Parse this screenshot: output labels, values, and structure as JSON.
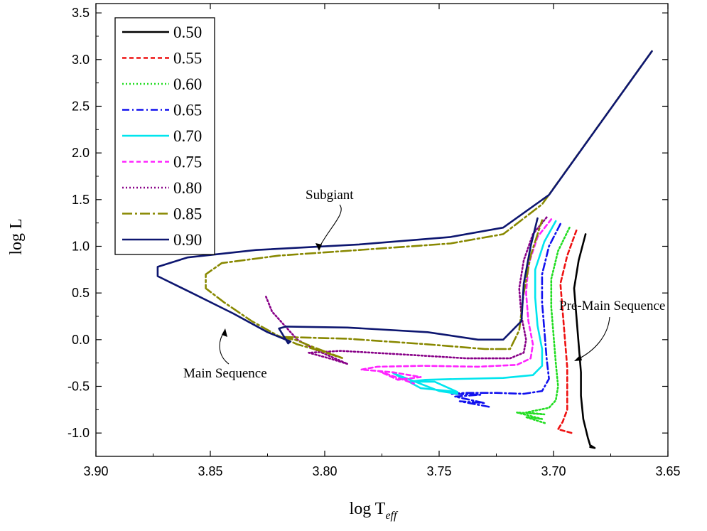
{
  "chart_data": {
    "type": "line",
    "xlabel": "log T",
    "xlabel_sub": "eff",
    "ylabel": "log L",
    "xlim": [
      3.9,
      3.65
    ],
    "ylim": [
      -1.25,
      3.6
    ],
    "x_reversed": true,
    "x_ticks": [
      "3.90",
      "3.85",
      "3.80",
      "3.75",
      "3.70",
      "3.65"
    ],
    "y_ticks": [
      "-1.0",
      "-0.5",
      "0.0",
      "0.5",
      "1.0",
      "1.5",
      "2.0",
      "2.5",
      "3.0",
      "3.5"
    ],
    "legend_position": "top-left",
    "annotations": [
      {
        "text": "Subgiant",
        "target": [
          3.803,
          0.98
        ]
      },
      {
        "text": "Main Sequence",
        "target": [
          3.841,
          0.14
        ]
      },
      {
        "text": "Pre-Main Sequence",
        "target": [
          3.689,
          -0.2
        ]
      }
    ],
    "series": [
      {
        "name": "0.50",
        "color": "#000000",
        "dash": "",
        "points": [
          [
            3.686,
            1.13
          ],
          [
            3.689,
            0.85
          ],
          [
            3.691,
            0.55
          ],
          [
            3.69,
            0.25
          ],
          [
            3.689,
            -0.05
          ],
          [
            3.688,
            -0.35
          ],
          [
            3.688,
            -0.6
          ],
          [
            3.687,
            -0.85
          ],
          [
            3.685,
            -1.05
          ],
          [
            3.684,
            -1.13
          ],
          [
            3.682,
            -1.16
          ],
          [
            3.684,
            -1.15
          ]
        ]
      },
      {
        "name": "0.55",
        "color": "#ee1111",
        "dash": "6,4",
        "points": [
          [
            3.69,
            1.17
          ],
          [
            3.694,
            0.9
          ],
          [
            3.697,
            0.6
          ],
          [
            3.696,
            0.3
          ],
          [
            3.695,
            0.0
          ],
          [
            3.694,
            -0.3
          ],
          [
            3.694,
            -0.55
          ],
          [
            3.694,
            -0.75
          ],
          [
            3.696,
            -0.88
          ],
          [
            3.698,
            -0.96
          ],
          [
            3.695,
            -0.98
          ],
          [
            3.692,
            -1.0
          ]
        ]
      },
      {
        "name": "0.60",
        "color": "#22dd22",
        "dash": "2,3",
        "points": [
          [
            3.693,
            1.2
          ],
          [
            3.698,
            0.95
          ],
          [
            3.701,
            0.65
          ],
          [
            3.701,
            0.35
          ],
          [
            3.7,
            0.05
          ],
          [
            3.699,
            -0.25
          ],
          [
            3.698,
            -0.5
          ],
          [
            3.699,
            -0.65
          ],
          [
            3.702,
            -0.73
          ],
          [
            3.708,
            -0.76
          ],
          [
            3.712,
            -0.78
          ],
          [
            3.704,
            -0.8
          ],
          [
            3.716,
            -0.78
          ],
          [
            3.705,
            -0.85
          ],
          [
            3.712,
            -0.83
          ],
          [
            3.703,
            -0.9
          ]
        ]
      },
      {
        "name": "0.65",
        "color": "#1111ee",
        "dash": "10,4,2,4",
        "points": [
          [
            3.697,
            1.24
          ],
          [
            3.702,
            1.0
          ],
          [
            3.705,
            0.7
          ],
          [
            3.705,
            0.4
          ],
          [
            3.704,
            0.1
          ],
          [
            3.703,
            -0.2
          ],
          [
            3.702,
            -0.42
          ],
          [
            3.705,
            -0.55
          ],
          [
            3.713,
            -0.58
          ],
          [
            3.725,
            -0.57
          ],
          [
            3.738,
            -0.57
          ],
          [
            3.745,
            -0.58
          ],
          [
            3.732,
            -0.59
          ],
          [
            3.743,
            -0.61
          ],
          [
            3.73,
            -0.68
          ],
          [
            3.741,
            -0.66
          ],
          [
            3.728,
            -0.72
          ]
        ]
      },
      {
        "name": "0.70",
        "color": "#00e5ee",
        "dash": "",
        "points": [
          [
            3.699,
            1.27
          ],
          [
            3.704,
            1.05
          ],
          [
            3.708,
            0.75
          ],
          [
            3.708,
            0.45
          ],
          [
            3.707,
            0.15
          ],
          [
            3.705,
            -0.1
          ],
          [
            3.705,
            -0.28
          ],
          [
            3.709,
            -0.38
          ],
          [
            3.722,
            -0.41
          ],
          [
            3.74,
            -0.42
          ],
          [
            3.756,
            -0.43
          ],
          [
            3.763,
            -0.45
          ],
          [
            3.752,
            -0.45
          ],
          [
            3.742,
            -0.56
          ],
          [
            3.758,
            -0.52
          ],
          [
            3.77,
            -0.36
          ],
          [
            3.75,
            -0.55
          ],
          [
            3.742,
            -0.58
          ]
        ]
      },
      {
        "name": "0.75",
        "color": "#ff22ff",
        "dash": "6,4",
        "points": [
          [
            3.701,
            1.29
          ],
          [
            3.707,
            1.1
          ],
          [
            3.711,
            0.8
          ],
          [
            3.712,
            0.5
          ],
          [
            3.711,
            0.2
          ],
          [
            3.709,
            -0.05
          ],
          [
            3.71,
            -0.2
          ],
          [
            3.716,
            -0.27
          ],
          [
            3.733,
            -0.29
          ],
          [
            3.757,
            -0.28
          ],
          [
            3.777,
            -0.29
          ],
          [
            3.784,
            -0.32
          ],
          [
            3.77,
            -0.35
          ],
          [
            3.758,
            -0.4
          ],
          [
            3.768,
            -0.43
          ],
          [
            3.776,
            -0.34
          ],
          [
            3.761,
            -0.47
          ]
        ]
      },
      {
        "name": "0.80",
        "color": "#880088",
        "dash": "2,3",
        "points": [
          [
            3.703,
            1.31
          ],
          [
            3.709,
            1.13
          ],
          [
            3.713,
            0.85
          ],
          [
            3.715,
            0.55
          ],
          [
            3.714,
            0.25
          ],
          [
            3.712,
            0.0
          ],
          [
            3.713,
            -0.14
          ],
          [
            3.719,
            -0.2
          ],
          [
            3.738,
            -0.2
          ],
          [
            3.765,
            -0.16
          ],
          [
            3.793,
            -0.12
          ],
          [
            3.807,
            -0.14
          ],
          [
            3.798,
            -0.2
          ],
          [
            3.79,
            -0.26
          ],
          [
            3.803,
            -0.12
          ],
          [
            3.812,
            0.0
          ],
          [
            3.823,
            0.3
          ],
          [
            3.826,
            0.48
          ]
        ]
      },
      {
        "name": "0.85",
        "color": "#888800",
        "dash": "14,4,3,4",
        "points": [
          [
            3.657,
            3.09
          ],
          [
            3.705,
            1.45
          ],
          [
            3.722,
            1.13
          ],
          [
            3.745,
            1.03
          ],
          [
            3.785,
            0.96
          ],
          [
            3.82,
            0.9
          ],
          [
            3.845,
            0.82
          ],
          [
            3.852,
            0.7
          ],
          [
            3.852,
            0.55
          ],
          [
            3.844,
            0.4
          ],
          [
            3.832,
            0.2
          ],
          [
            3.821,
            0.05
          ],
          [
            3.812,
            -0.05
          ],
          [
            3.802,
            -0.12
          ],
          [
            3.792,
            -0.2
          ],
          [
            3.805,
            -0.08
          ],
          [
            3.813,
            0.0
          ],
          [
            3.82,
            0.03
          ],
          [
            3.79,
            0.01
          ],
          [
            3.755,
            -0.05
          ],
          [
            3.73,
            -0.1
          ],
          [
            3.719,
            -0.1
          ],
          [
            3.715,
            0.1
          ],
          [
            3.713,
            0.5
          ],
          [
            3.71,
            0.9
          ],
          [
            3.705,
            1.28
          ]
        ]
      },
      {
        "name": "0.90",
        "color": "#0d1670",
        "dash": "",
        "points": [
          [
            3.657,
            3.09
          ],
          [
            3.702,
            1.55
          ],
          [
            3.722,
            1.2
          ],
          [
            3.745,
            1.1
          ],
          [
            3.785,
            1.02
          ],
          [
            3.83,
            0.96
          ],
          [
            3.86,
            0.88
          ],
          [
            3.873,
            0.78
          ],
          [
            3.873,
            0.68
          ],
          [
            3.858,
            0.5
          ],
          [
            3.84,
            0.28
          ],
          [
            3.825,
            0.08
          ],
          [
            3.815,
            -0.02
          ],
          [
            3.816,
            -0.04
          ],
          [
            3.82,
            0.12
          ],
          [
            3.817,
            0.14
          ],
          [
            3.79,
            0.13
          ],
          [
            3.755,
            0.08
          ],
          [
            3.733,
            0.0
          ],
          [
            3.722,
            0.0
          ],
          [
            3.714,
            0.2
          ],
          [
            3.713,
            0.6
          ],
          [
            3.71,
            1.0
          ],
          [
            3.707,
            1.3
          ]
        ]
      }
    ]
  }
}
